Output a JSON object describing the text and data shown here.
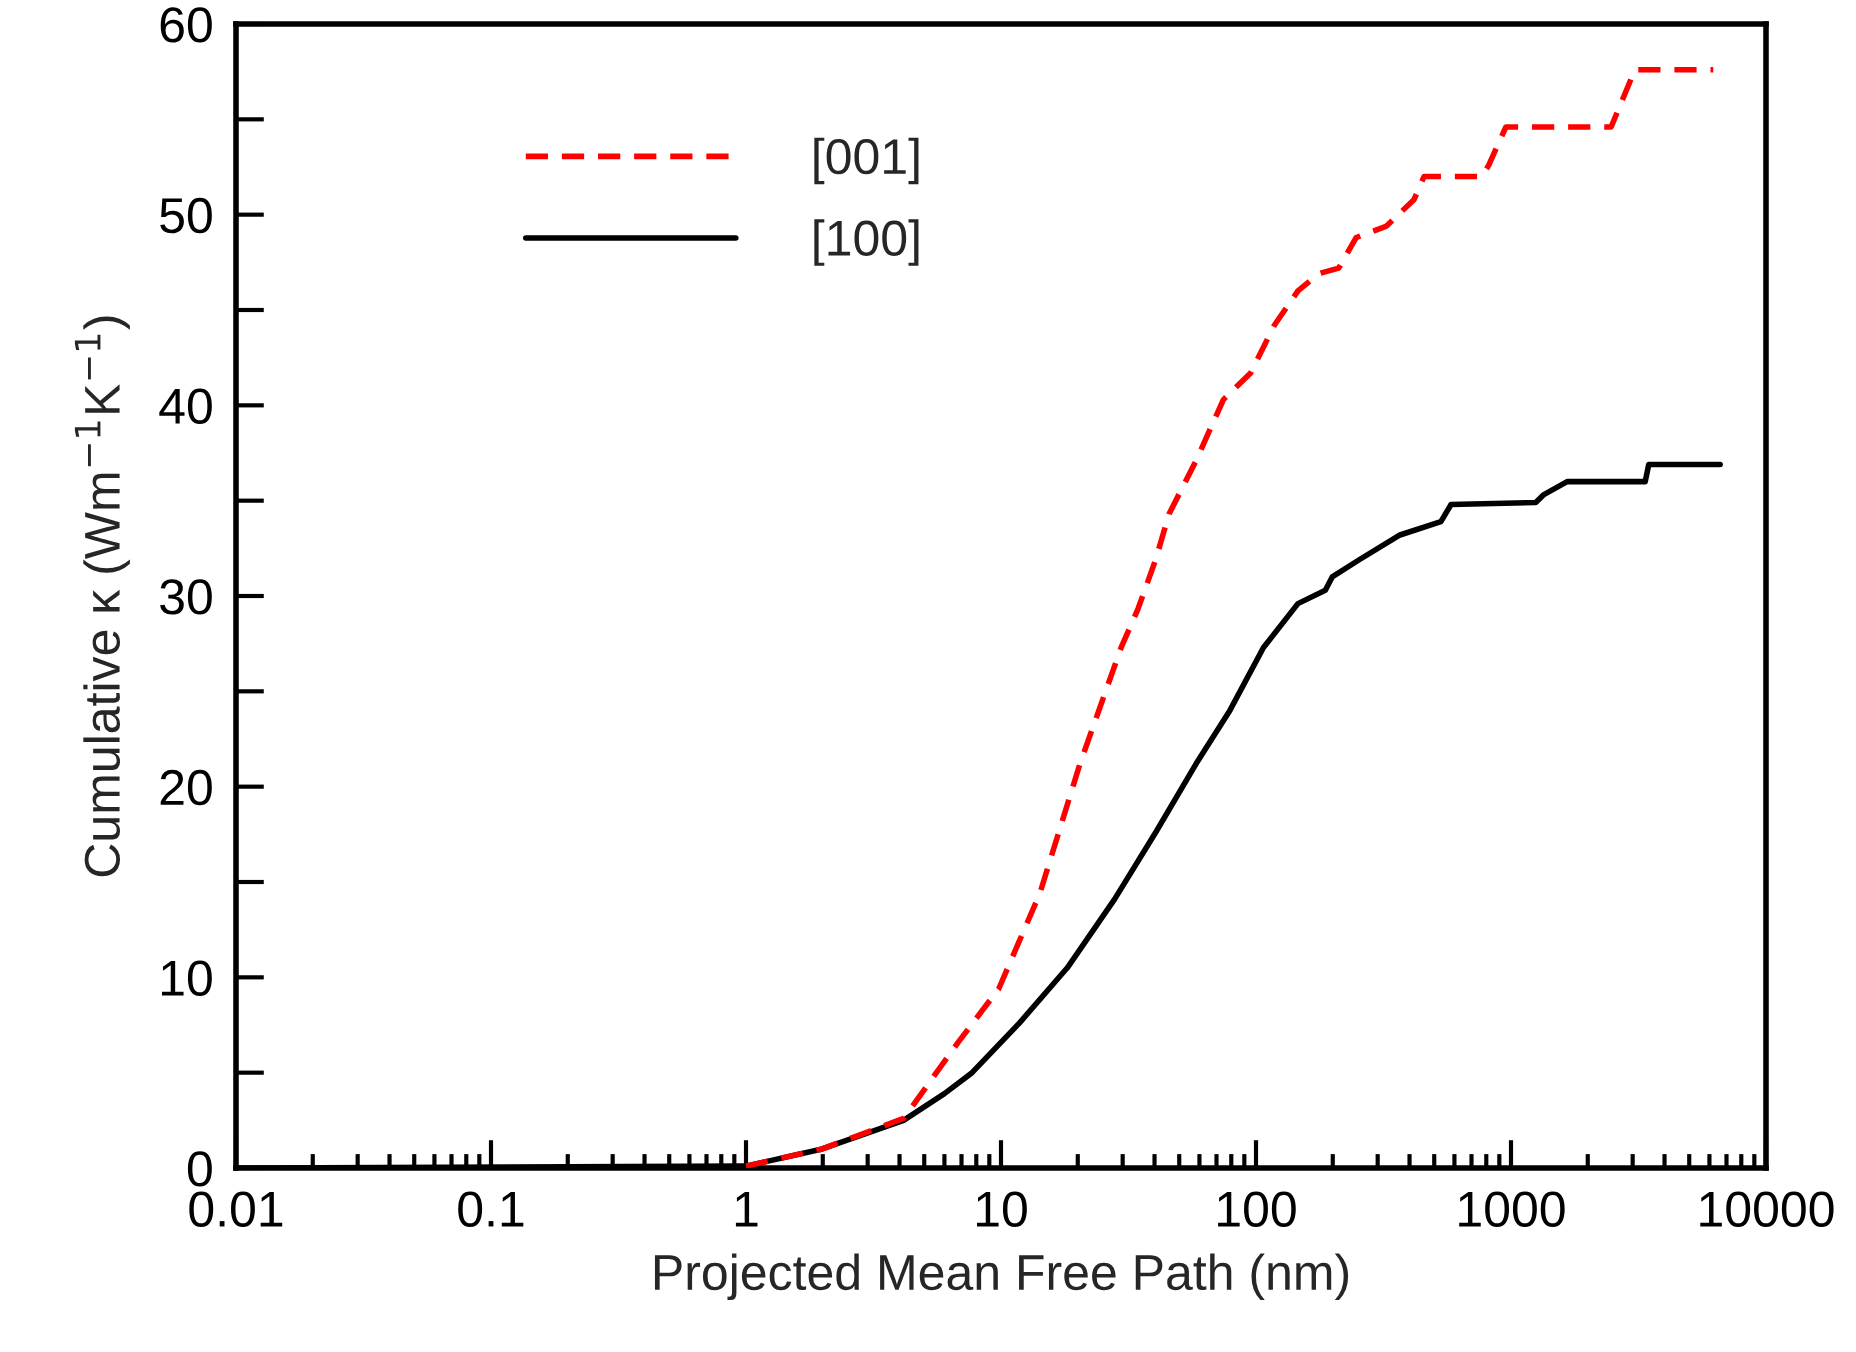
{
  "chart_data": {
    "type": "line",
    "xlabel": "Projected Mean Free Path (nm)",
    "ylabel": "Cumulative κ (Wm$^{−1}$K$^{−1}$)",
    "log": "x",
    "xlim": [
      0.01,
      10000
    ],
    "xticks": [
      0.01,
      0.1,
      1,
      10,
      100,
      1000,
      10000
    ],
    "ylim": [
      0,
      60
    ],
    "yticks": [
      0,
      {
        "value": 5,
        "label": null
      },
      10,
      {
        "value": 15,
        "label": null
      },
      20,
      {
        "value": 25,
        "label": null
      },
      30,
      {
        "value": 35,
        "label": null
      },
      40,
      {
        "value": 45,
        "label": null
      },
      50,
      {
        "value": 55,
        "label": null
      },
      60
    ],
    "grid": false,
    "legend": "top left",
    "series": [
      {
        "name": "[001]",
        "color": "#ff0000",
        "line_style": "dashed",
        "x": [
          1,
          1.99,
          4.15,
          6.8,
          9.8,
          14.2,
          20.4,
          29.6,
          34.4,
          40.4,
          45.6,
          58.2,
          74.5,
          95.3,
          118,
          146,
          176,
          211,
          247,
          325,
          417,
          456,
          769,
          818,
          955,
          2470,
          3060,
          6210
        ],
        "values": [
          0.1,
          1.0,
          2.6,
          6.6,
          9.4,
          14.4,
          21.2,
          27.3,
          29.3,
          31.9,
          34.3,
          37.1,
          40.3,
          41.7,
          44.2,
          46.0,
          46.9,
          47.2,
          48.8,
          49.4,
          50.8,
          52.0,
          52.0,
          52.6,
          54.6,
          54.6,
          57.6,
          57.6
        ]
      },
      {
        "name": "[100]",
        "color": "#000000",
        "line_style": "solid",
        "x": [
          0.01,
          1,
          1.99,
          4.15,
          6.0,
          7.7,
          11.8,
          18.2,
          27.9,
          40.4,
          58.2,
          79,
          107,
          146,
          187,
          199,
          254,
          367,
          531,
          582,
          1250,
          1340,
          1660,
          3360,
          3470,
          6610
        ],
        "values": [
          0,
          0.1,
          1.0,
          2.5,
          3.9,
          5.0,
          7.6,
          10.5,
          14.1,
          17.6,
          21.2,
          24.0,
          27.3,
          29.6,
          30.3,
          31.0,
          31.9,
          33.2,
          33.9,
          34.8,
          34.9,
          35.3,
          36.0,
          36.0,
          36.9,
          36.9
        ]
      }
    ]
  }
}
